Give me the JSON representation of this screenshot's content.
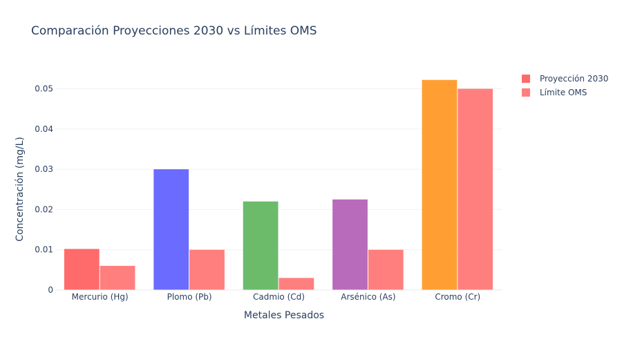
{
  "chart_data": {
    "type": "bar",
    "title": "Comparación Proyecciones 2030 vs Límites OMS",
    "xlabel": "Metales Pesados",
    "ylabel": "Concentración (mg/L)",
    "categories": [
      "Mercurio (Hg)",
      "Plomo (Pb)",
      "Cadmio (Cd)",
      "Arsénico (As)",
      "Cromo (Cr)"
    ],
    "series": [
      {
        "name": "Proyección 2030",
        "values": [
          0.0102,
          0.03,
          0.022,
          0.0225,
          0.0522
        ],
        "colors": [
          "#ff6b6b",
          "#6b6bff",
          "#6bbb6b",
          "#b86bbb",
          "#ff9f33"
        ]
      },
      {
        "name": "Límite OMS",
        "values": [
          0.006,
          0.01,
          0.003,
          0.01,
          0.05
        ],
        "colors": [
          "#ff7f7f",
          "#ff7f7f",
          "#ff7f7f",
          "#ff7f7f",
          "#ff7f7f"
        ]
      }
    ],
    "ylim": [
      0,
      0.0549
    ],
    "yticks": [
      0,
      0.01,
      0.02,
      0.03,
      0.04,
      0.05
    ],
    "ytick_labels": [
      "0",
      "0.01",
      "0.02",
      "0.03",
      "0.04",
      "0.05"
    ],
    "grid": true,
    "legend_position": "top-right",
    "legend_colors": [
      "#ff6b6b",
      "#ff7f7f"
    ]
  }
}
